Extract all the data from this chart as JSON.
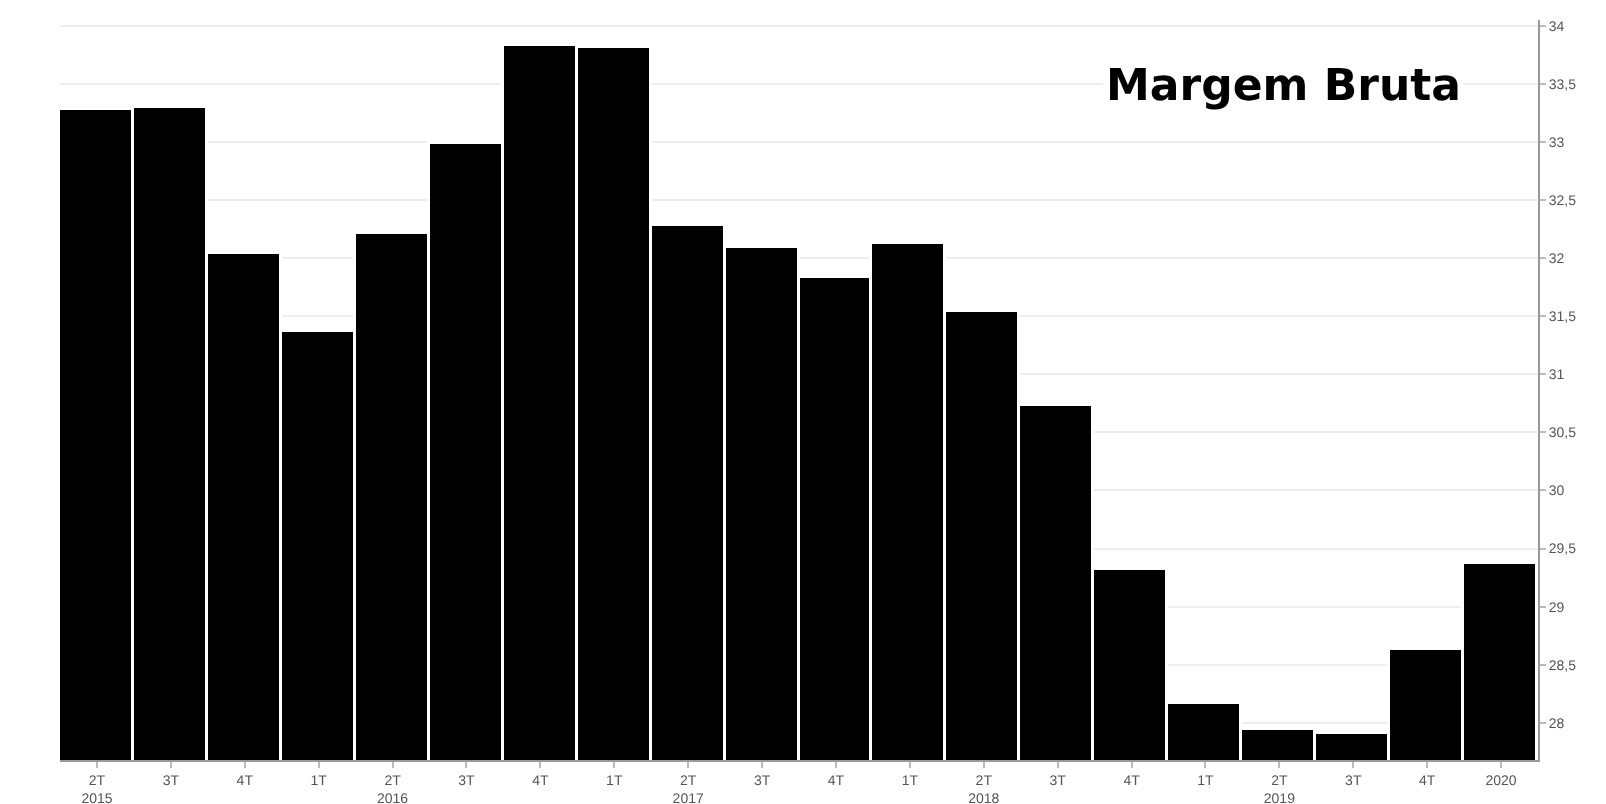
{
  "chart_data": {
    "type": "bar",
    "title": "Margem Bruta",
    "categories": [
      "2T\n2015",
      "3T",
      "4T",
      "1T",
      "2T\n2016",
      "3T",
      "4T",
      "1T",
      "2T\n2017",
      "3T",
      "4T",
      "1T",
      "2T\n2018",
      "3T",
      "4T",
      "1T",
      "2T\n2019",
      "3T",
      "4T",
      "2020"
    ],
    "values": [
      33.28,
      33.3,
      32.04,
      31.36,
      32.21,
      32.99,
      33.83,
      33.81,
      32.28,
      32.09,
      31.83,
      32.12,
      31.54,
      30.72,
      29.32,
      28.16,
      27.94,
      27.91,
      28.62,
      29.37
    ],
    "color": "#000000",
    "ylim": [
      27.68,
      34.05
    ],
    "yticks": [
      28,
      {
        "value": 28.5,
        "label": "28,5"
      },
      29,
      {
        "value": 29.5,
        "label": "29,5"
      },
      30,
      {
        "value": 30.5,
        "label": "30,5"
      },
      31,
      {
        "value": 31.5,
        "label": "31,5"
      },
      32,
      {
        "value": 32.5,
        "label": "32,5"
      },
      33,
      {
        "value": 33.5,
        "label": "33,5"
      },
      34
    ],
    "grid": "y"
  }
}
